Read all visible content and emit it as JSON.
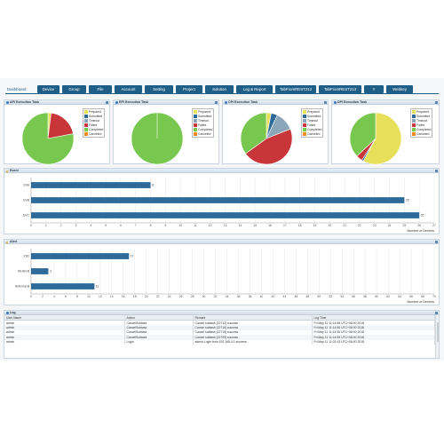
{
  "nav": {
    "tabs": [
      {
        "label": "Dashboard",
        "active": true
      },
      {
        "label": "Device"
      },
      {
        "label": "Group"
      },
      {
        "label": "File"
      },
      {
        "label": "Account"
      },
      {
        "label": "Setting"
      },
      {
        "label": "Project"
      },
      {
        "label": "Solution"
      },
      {
        "label": "Log & Report"
      },
      {
        "label": "TabFromREST212"
      },
      {
        "label": "TabFromREST213"
      },
      {
        "label": "Y"
      },
      {
        "label": "Webkey"
      }
    ]
  },
  "legend_labels": [
    "Prepared",
    "Submitted",
    "Timeout",
    "Failed",
    "Completed",
    "Canceled"
  ],
  "status_colors": {
    "Prepared": "#e6e05a",
    "Submitted": "#2e6a9a",
    "Timeout": "#8aa6b8",
    "Failed": "#c8363a",
    "Completed": "#78c850",
    "Canceled": "#f08a1c"
  },
  "task_panels": [
    {
      "title": "API Execution Task",
      "chart_data": {
        "type": "pie",
        "slices": [
          {
            "label": "Prepared",
            "value": 2
          },
          {
            "label": "Submitted",
            "value": 0
          },
          {
            "label": "Timeout",
            "value": 0
          },
          {
            "label": "Failed",
            "value": 20
          },
          {
            "label": "Completed",
            "value": 78
          },
          {
            "label": "Canceled",
            "value": 0
          }
        ]
      }
    },
    {
      "title": "RPI Execution Task",
      "chart_data": {
        "type": "pie",
        "slices": [
          {
            "label": "Prepared",
            "value": 0
          },
          {
            "label": "Submitted",
            "value": 0
          },
          {
            "label": "Timeout",
            "value": 0
          },
          {
            "label": "Failed",
            "value": 0
          },
          {
            "label": "Completed",
            "value": 100
          },
          {
            "label": "Canceled",
            "value": 0
          }
        ]
      }
    },
    {
      "title": "CPI Execution Task",
      "chart_data": {
        "type": "pie",
        "slices": [
          {
            "label": "Prepared",
            "value": 3
          },
          {
            "label": "Submitted",
            "value": 4
          },
          {
            "label": "Timeout",
            "value": 12
          },
          {
            "label": "Failed",
            "value": 46
          },
          {
            "label": "Completed",
            "value": 35
          },
          {
            "label": "Canceled",
            "value": 0
          }
        ]
      }
    },
    {
      "title": "DPI Execution Task",
      "chart_data": {
        "type": "pie",
        "slices": [
          {
            "label": "Prepared",
            "value": 58
          },
          {
            "label": "Submitted",
            "value": 1
          },
          {
            "label": "Timeout",
            "value": 0
          },
          {
            "label": "Failed",
            "value": 4
          },
          {
            "label": "Completed",
            "value": 37
          },
          {
            "label": "Canceled",
            "value": 0
          }
        ]
      }
    }
  ],
  "event_panel": {
    "title": "Event",
    "chart_data": {
      "type": "bar",
      "orientation": "horizontal",
      "categories": [
        "EVA",
        "EVB",
        "EVC"
      ],
      "values": [
        8,
        25,
        26
      ],
      "xlim": [
        0,
        27
      ],
      "xticks": [
        0,
        1,
        2,
        3,
        4,
        5,
        6,
        7,
        8,
        9,
        10,
        11,
        12,
        13,
        14,
        15,
        16,
        17,
        18,
        19,
        20,
        21,
        22,
        23,
        24,
        25,
        26,
        27
      ],
      "xlabel": "Number of Devices",
      "grid": true,
      "bar_color": "#2e6a9a"
    }
  },
  "alert_panel": {
    "title": "Alert",
    "chart_data": {
      "type": "bar",
      "orientation": "horizontal",
      "categories": [
        "X3D",
        "WLAN-B",
        "Antenna-B"
      ],
      "values": [
        17,
        3,
        11
      ],
      "xlim": [
        0,
        70
      ],
      "xticks": [
        0,
        2,
        4,
        6,
        8,
        10,
        12,
        14,
        16,
        18,
        20,
        22,
        24,
        26,
        28,
        30,
        32,
        34,
        36,
        38,
        40,
        42,
        44,
        46,
        48,
        50,
        52,
        54,
        56,
        58,
        60,
        62,
        64,
        66,
        68,
        70
      ],
      "xlabel": "Number of Devices",
      "grid": true,
      "bar_color": "#2e6a9a"
    }
  },
  "log_panel": {
    "title": "Log",
    "columns": [
      "User Name",
      "Action",
      "Remark",
      "Log Time"
    ],
    "rows": [
      {
        "user": "admin",
        "action": "CancelSubtask",
        "remark": "Cancel subtask [22712] success",
        "time": "Fri May 11 11:14:55 UTC+08:00 2018"
      },
      {
        "user": "admin",
        "action": "CancelSubtask",
        "remark": "Cancel subtask [22716] success",
        "time": "Fri May 11 11:14:55 UTC+08:00 2018"
      },
      {
        "user": "admin",
        "action": "CancelSubtask",
        "remark": "Cancel subtask [22718] success",
        "time": "Fri May 11 11:14:55 UTC+08:00 2018"
      },
      {
        "user": "admin",
        "action": "CancelSubtask",
        "remark": "Cancel subtask [22709] success",
        "time": "Fri May 11 11:14:55 UTC+08:00 2018"
      },
      {
        "user": "admin",
        "action": "Login",
        "remark": "admin Login from 192.168.4.1 success",
        "time": "Fri May 11 11:02:43 UTC+08:00 2018"
      }
    ]
  }
}
